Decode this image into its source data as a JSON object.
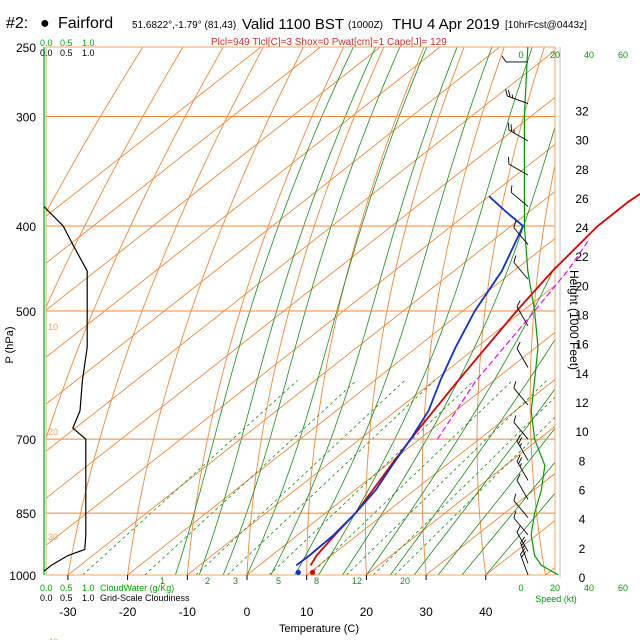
{
  "header": {
    "station_num": "#2:",
    "station_name": "Fairford",
    "coords": "51.6822°,-1.79° (81,43)",
    "valid": "Valid 1100 BST",
    "valid_utc": "(1000Z)",
    "date": "THU 4 Apr 2019",
    "forecast": "[10hrFcst@0443z]",
    "indices": "Plcl=949 Tlcl[C]=3 Shox=0 Pwat[cm]=1 Cape[J]= 129"
  },
  "colors": {
    "frame": "#e8a868",
    "isotherm": "#f08838",
    "dry_adiabat": "#f08838",
    "moist_adiabat": "#1a8a1a",
    "mixing_ratio": "#1a8a1a",
    "temperature": "#dd0000",
    "dewpoint": "#1030d0",
    "parcel": "#ff00ff",
    "cloud_axis": "#00aa00",
    "wind": "#000000",
    "speed": "#009900"
  },
  "chart_data": {
    "type": "line",
    "title": "Skew-T log-P sounding",
    "xlabel": "Temperature (C)",
    "ylabel": "P (hPa)",
    "y2label": "Height (1000 Feet)",
    "xlim": [
      -35,
      46
    ],
    "ylim": [
      1000,
      250
    ],
    "y_scale": "log",
    "x_ticks": [
      -30,
      -20,
      -10,
      0,
      10,
      20,
      30,
      40
    ],
    "y_ticks": [
      250,
      300,
      400,
      500,
      700,
      850,
      1000
    ],
    "height_ticks": [
      0,
      2,
      4,
      6,
      8,
      10,
      12,
      14,
      16,
      18,
      20,
      22,
      24,
      26,
      28,
      30,
      32
    ],
    "isotherm_labels": [
      {
        "label": "10",
        "p": 270
      },
      {
        "label": "0",
        "p": 338
      },
      {
        "label": "10",
        "p": 402
      },
      {
        "label": "20",
        "p": 475
      },
      {
        "label": "30",
        "p": 558
      }
    ],
    "cloud_axis": {
      "top_label_1": [
        "0.0",
        "0.5",
        "1.0"
      ],
      "top_label_2": [
        "0.0",
        "0.5",
        "1.0"
      ],
      "bottom_label_1": [
        "0.0",
        "0.5",
        "1.0",
        "CloudWater (g/Kg)"
      ],
      "bottom_label_2": [
        "0.0",
        "0.5",
        "1.0",
        "Grid-Scale Cloudiness"
      ],
      "left_labels": [
        "10",
        "20",
        "30",
        "40"
      ]
    },
    "speed_axis": {
      "ticks": [
        "0",
        "20",
        "40",
        "60"
      ],
      "label": "Speed (kt)"
    },
    "mixing_ratio_labels": [
      "1",
      "2",
      "3",
      "5",
      "8",
      "12",
      "20"
    ],
    "series": [
      {
        "name": "Temperature",
        "points": [
          [
            8.6,
            975
          ],
          [
            7.5,
            950
          ],
          [
            6.2,
            900
          ],
          [
            5.0,
            850
          ],
          [
            3.0,
            800
          ],
          [
            0.8,
            750
          ],
          [
            -1.5,
            700
          ],
          [
            -6,
            600
          ],
          [
            -11,
            500
          ],
          [
            -13.5,
            450
          ],
          [
            -15.5,
            400
          ],
          [
            -15.5,
            375
          ],
          [
            -14.5,
            350
          ],
          [
            -13,
            325
          ],
          [
            -11,
            300
          ],
          [
            -9,
            280
          ],
          [
            -7.5,
            265
          ],
          [
            -6.5,
            257
          ]
        ]
      },
      {
        "name": "Dewpoint",
        "points": [
          [
            6.2,
            975
          ],
          [
            6.3,
            950
          ],
          [
            6.0,
            900
          ],
          [
            5.0,
            850
          ],
          [
            3.5,
            800
          ],
          [
            1.0,
            750
          ],
          [
            -1.5,
            700
          ],
          [
            -4.5,
            650
          ],
          [
            -9,
            600
          ],
          [
            -13.5,
            550
          ],
          [
            -18,
            500
          ],
          [
            -22,
            450
          ],
          [
            -28,
            400
          ],
          [
            -34,
            385
          ],
          [
            -40,
            370
          ]
        ]
      },
      {
        "name": "Parcel",
        "points": [
          [
            3,
            700
          ],
          [
            -3,
            600
          ],
          [
            -8,
            500
          ],
          [
            -11,
            450
          ],
          [
            -14,
            415
          ]
        ]
      },
      {
        "name": "CloudWater",
        "points": [
          [
            0.0,
            1000
          ],
          [
            0.0,
            850
          ],
          [
            0.0,
            700
          ],
          [
            0.0,
            500
          ],
          [
            0.0,
            300
          ],
          [
            0.0,
            250
          ]
        ]
      },
      {
        "name": "Grid-Scale Cloudiness",
        "points": [
          [
            0.0,
            990
          ],
          [
            0.15,
            975
          ],
          [
            0.5,
            950
          ],
          [
            0.85,
            935
          ],
          [
            0.87,
            900
          ],
          [
            0.87,
            800
          ],
          [
            0.87,
            700
          ],
          [
            0.6,
            680
          ],
          [
            0.75,
            650
          ],
          [
            0.8,
            600
          ],
          [
            0.9,
            550
          ],
          [
            0.9,
            500
          ],
          [
            0.9,
            450
          ],
          [
            0.6,
            420
          ],
          [
            0.4,
            400
          ],
          [
            0.1,
            385
          ],
          [
            0.0,
            380
          ]
        ]
      },
      {
        "name": "WindSpeed",
        "points": [
          [
            22,
            1000
          ],
          [
            12,
            975
          ],
          [
            8,
            950
          ],
          [
            6,
            900
          ],
          [
            8,
            850
          ],
          [
            12,
            800
          ],
          [
            14,
            750
          ],
          [
            8,
            700
          ],
          [
            6,
            650
          ],
          [
            8,
            600
          ],
          [
            10,
            550
          ],
          [
            8,
            500
          ],
          [
            4,
            450
          ],
          [
            2,
            400
          ],
          [
            2,
            300
          ],
          [
            4,
            250
          ]
        ]
      }
    ],
    "winds": [
      {
        "p": 260,
        "spd": 10,
        "dir": 270
      },
      {
        "p": 290,
        "spd": 15,
        "dir": 290
      },
      {
        "p": 320,
        "spd": 15,
        "dir": 300
      },
      {
        "p": 350,
        "spd": 10,
        "dir": 300
      },
      {
        "p": 380,
        "spd": 10,
        "dir": 310
      },
      {
        "p": 420,
        "spd": 10,
        "dir": 320
      },
      {
        "p": 460,
        "spd": 10,
        "dir": 320
      },
      {
        "p": 520,
        "spd": 10,
        "dir": 330
      },
      {
        "p": 580,
        "spd": 10,
        "dir": 330
      },
      {
        "p": 640,
        "spd": 10,
        "dir": 320
      },
      {
        "p": 700,
        "spd": 10,
        "dir": 320
      },
      {
        "p": 740,
        "spd": 15,
        "dir": 330
      },
      {
        "p": 780,
        "spd": 15,
        "dir": 330
      },
      {
        "p": 820,
        "spd": 10,
        "dir": 330
      },
      {
        "p": 860,
        "spd": 10,
        "dir": 320
      },
      {
        "p": 900,
        "spd": 10,
        "dir": 320
      },
      {
        "p": 940,
        "spd": 10,
        "dir": 330
      },
      {
        "p": 970,
        "spd": 15,
        "dir": 340
      },
      {
        "p": 1000,
        "spd": 20,
        "dir": 340
      }
    ]
  }
}
